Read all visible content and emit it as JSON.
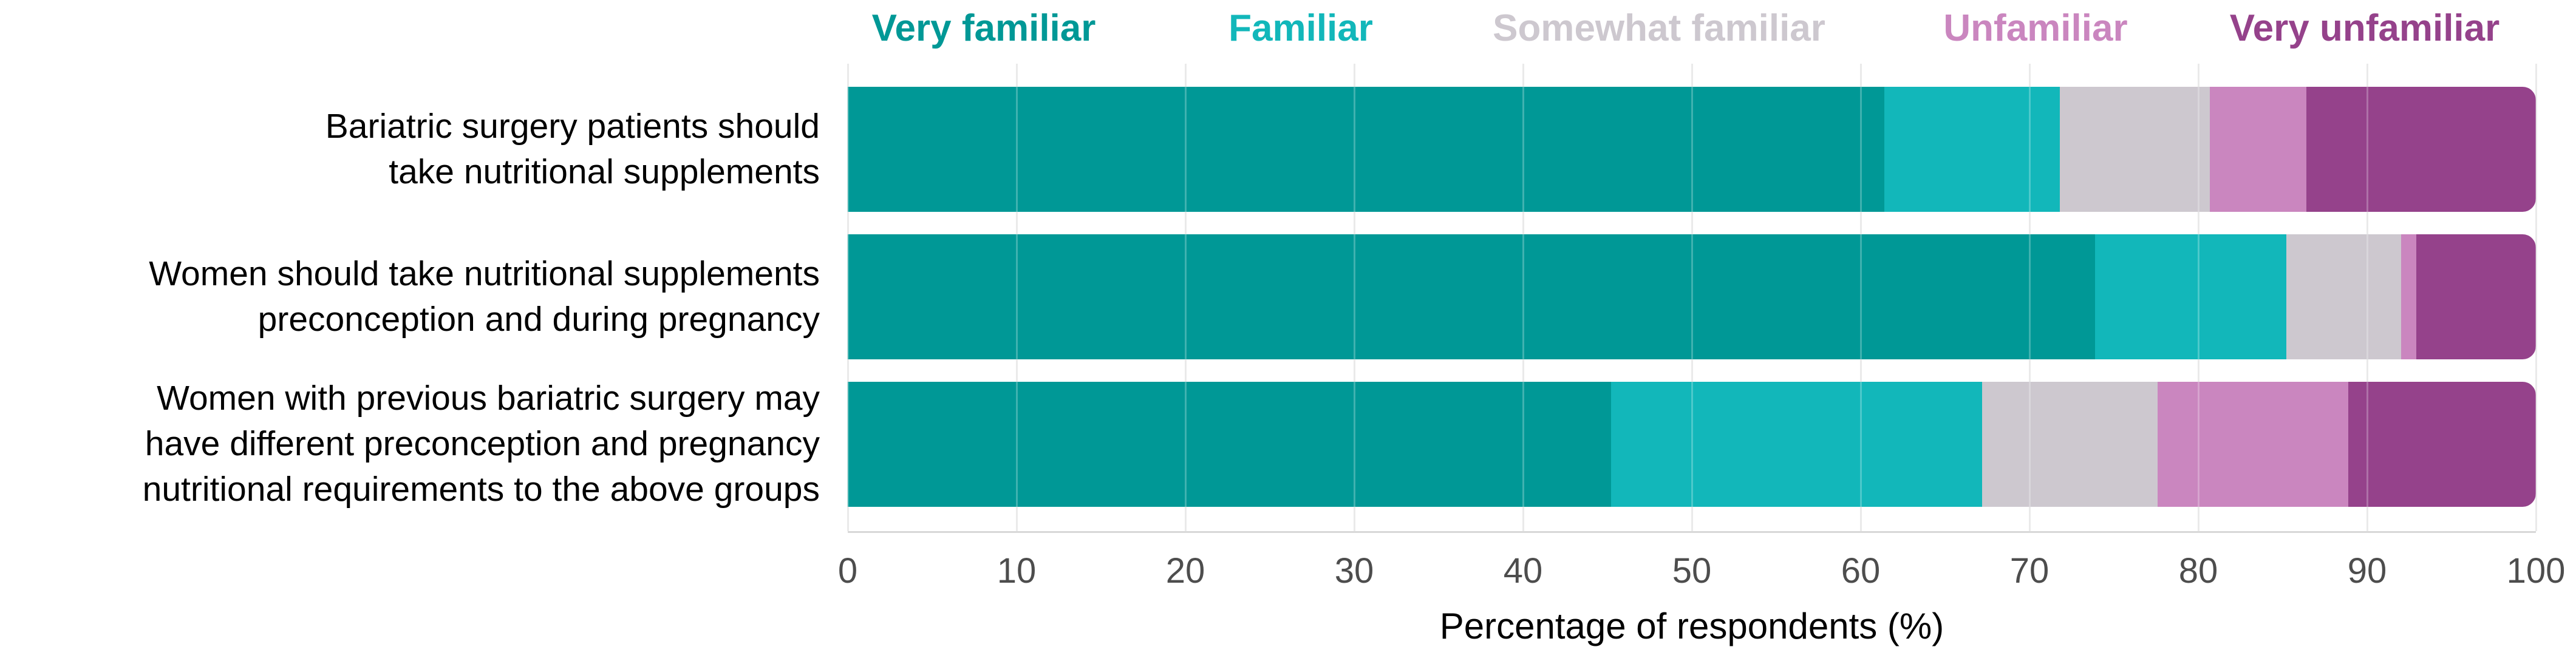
{
  "chart_data": {
    "type": "bar",
    "orientation": "horizontal",
    "stacked": true,
    "unit": "%",
    "xlabel": "Percentage of respondents (%)",
    "xlim": [
      0,
      100
    ],
    "x_ticks": [
      0,
      10,
      20,
      30,
      40,
      50,
      60,
      70,
      80,
      90,
      100
    ],
    "legend_position": "top",
    "grid": "vertical",
    "categories": [
      {
        "label": "Bariatric surgery patients should take nutritional supplements",
        "lines": [
          "Bariatric surgery patients should",
          "take nutritional supplements"
        ]
      },
      {
        "label": "Women should take nutritional supplements preconception and during pregnancy",
        "lines": [
          "Women should take nutritional supplements",
          "preconception and during pregnancy"
        ]
      },
      {
        "label": "Women with previous bariatric surgery may have different preconception and pregnancy nutritional requirements to the above groups",
        "lines": [
          "Women with previous bariatric surgery may",
          "have different preconception and pregnancy",
          "nutritional requirements to the above groups"
        ]
      }
    ],
    "series": [
      {
        "name": "Very familiar",
        "color": "#009896",
        "values": [
          61.4,
          73.9,
          45.2
        ]
      },
      {
        "name": "Familiar",
        "color": "#12b7ba",
        "values": [
          10.4,
          11.3,
          22.0
        ]
      },
      {
        "name": "Somewhat familiar",
        "color": "#cdc8cf",
        "values": [
          8.9,
          6.8,
          10.4
        ]
      },
      {
        "name": "Unfamiliar",
        "color": "#ca86bf",
        "values": [
          5.7,
          0.9,
          11.3
        ]
      },
      {
        "name": "Very unfamiliar",
        "color": "#95428b",
        "values": [
          13.6,
          7.1,
          11.1
        ]
      }
    ],
    "axis_colors": {
      "tick_label": "#4d4d4d",
      "axis_line": "#d8d8d8",
      "gridline": "#e3e3e3"
    }
  }
}
